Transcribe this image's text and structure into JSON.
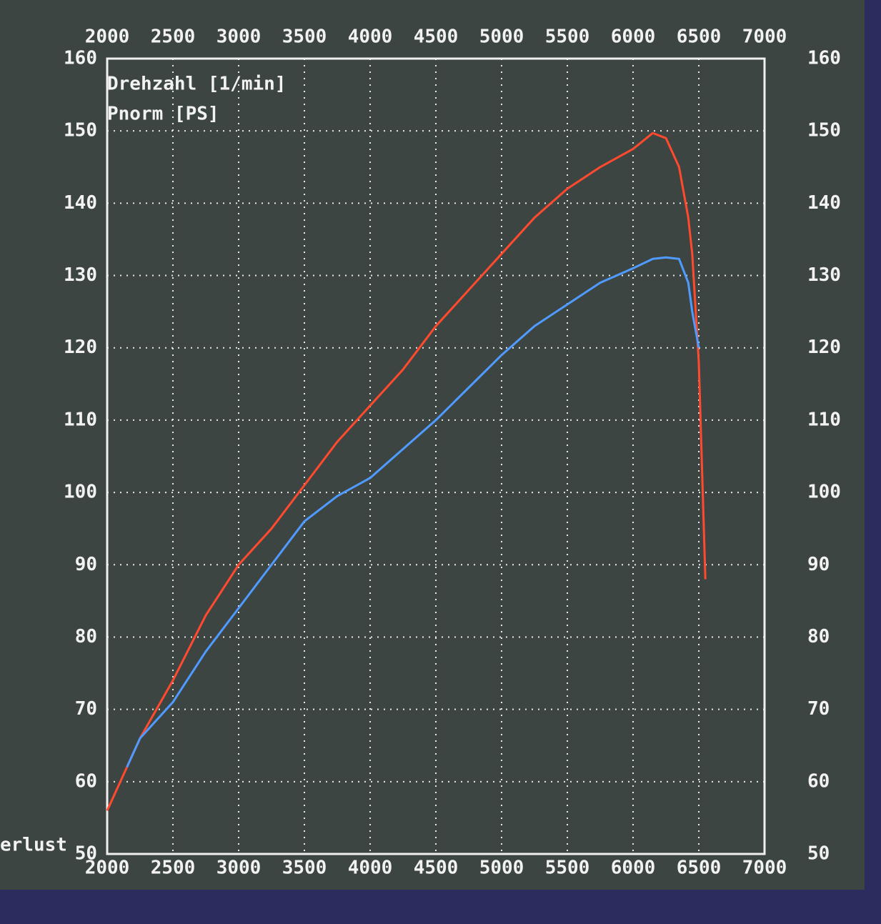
{
  "chart_data": {
    "type": "line",
    "x_label": "Drehzahl [1/min]",
    "y_label": "Pnorm [PS]",
    "annotation": "erlust",
    "x": [
      2000,
      2150,
      2250,
      2500,
      2750,
      3000,
      3250,
      3500,
      3750,
      4000,
      4250,
      4500,
      4750,
      5000,
      5250,
      5500,
      5750,
      6000,
      6150,
      6250,
      6350,
      6420,
      6450,
      6500,
      6550
    ],
    "series": [
      {
        "color": "#ff4a2e",
        "values": [
          56,
          62,
          66,
          74,
          83,
          90,
          95,
          101,
          107,
          112,
          117,
          123,
          128,
          133,
          138,
          142,
          145,
          147.5,
          149.7,
          149,
          145,
          138,
          133,
          118,
          88
        ]
      },
      {
        "color": "#4f9bff",
        "values": [
          null,
          62,
          66,
          71,
          78,
          84,
          90,
          96,
          99.5,
          102,
          106,
          110,
          114.5,
          119,
          123,
          126,
          129,
          131,
          132.3,
          132.5,
          132.3,
          129,
          125,
          120,
          null
        ]
      }
    ],
    "xlim": [
      2000,
      7000
    ],
    "xticks": [
      2000,
      2500,
      3000,
      3500,
      4000,
      4500,
      5000,
      5500,
      6000,
      6500,
      7000
    ],
    "ylim": [
      50,
      160
    ],
    "yticks": [
      50,
      60,
      70,
      80,
      90,
      100,
      110,
      120,
      130,
      140,
      150,
      160
    ],
    "grid": true
  }
}
